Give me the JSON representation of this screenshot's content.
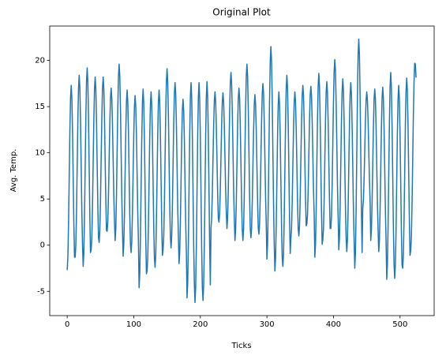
{
  "chart_data": {
    "type": "line",
    "title": "Original Plot",
    "x_label": "Ticks",
    "y_label": "Avg. Temp.",
    "xlim": [
      -26.25,
      551.25
    ],
    "xticks": [
      0,
      100,
      200,
      300,
      400,
      500
    ],
    "ylim": [
      -7.625,
      23.725
    ],
    "yticks": [
      -5,
      0,
      5,
      10,
      15,
      20
    ],
    "x": [
      0,
      1,
      2,
      3,
      4,
      5,
      6,
      7,
      8,
      9,
      10,
      11,
      12,
      13,
      14,
      15,
      16,
      17,
      18,
      19,
      20,
      21,
      22,
      23,
      24,
      25,
      26,
      27,
      28,
      29,
      30,
      31,
      32,
      33,
      34,
      35,
      36,
      37,
      38,
      39,
      40,
      41,
      42,
      43,
      44,
      45,
      46,
      47,
      48,
      49,
      50,
      51,
      52,
      53,
      54,
      55,
      56,
      57,
      58,
      59,
      60,
      61,
      62,
      63,
      64,
      65,
      66,
      67,
      68,
      69,
      70,
      71,
      72,
      73,
      74,
      75,
      76,
      77,
      78,
      79,
      80,
      81,
      82,
      83,
      84,
      85,
      86,
      87,
      88,
      89,
      90,
      91,
      92,
      93,
      94,
      95,
      96,
      97,
      98,
      99,
      100,
      101,
      102,
      103,
      104,
      105,
      106,
      107,
      108,
      109,
      110,
      111,
      112,
      113,
      114,
      115,
      116,
      117,
      118,
      119,
      120,
      121,
      122,
      123,
      124,
      125,
      126,
      127,
      128,
      129,
      130,
      131,
      132,
      133,
      134,
      135,
      136,
      137,
      138,
      139,
      140,
      141,
      142,
      143,
      144,
      145,
      146,
      147,
      148,
      149,
      150,
      151,
      152,
      153,
      154,
      155,
      156,
      157,
      158,
      159,
      160,
      161,
      162,
      163,
      164,
      165,
      166,
      167,
      168,
      169,
      170,
      171,
      172,
      173,
      174,
      175,
      176,
      177,
      178,
      179,
      180,
      181,
      182,
      183,
      184,
      185,
      186,
      187,
      188,
      189,
      190,
      191,
      192,
      193,
      194,
      195,
      196,
      197,
      198,
      199,
      200,
      201,
      202,
      203,
      204,
      205,
      206,
      207,
      208,
      209,
      210,
      211,
      212,
      213,
      214,
      215,
      216,
      217,
      218,
      219,
      220,
      221,
      222,
      223,
      224,
      225,
      226,
      227,
      228,
      229,
      230,
      231,
      232,
      233,
      234,
      235,
      236,
      237,
      238,
      239,
      240,
      241,
      242,
      243,
      244,
      245,
      246,
      247,
      248,
      249,
      250,
      251,
      252,
      253,
      254,
      255,
      256,
      257,
      258,
      259,
      260,
      261,
      262,
      263,
      264,
      265,
      266,
      267,
      268,
      269,
      270,
      271,
      272,
      273,
      274,
      275,
      276,
      277,
      278,
      279,
      280,
      281,
      282,
      283,
      284,
      285,
      286,
      287,
      288,
      289,
      290,
      291,
      292,
      293,
      294,
      295,
      296,
      297,
      298,
      299,
      300,
      301,
      302,
      303,
      304,
      305,
      306,
      307,
      308,
      309,
      310,
      311,
      312,
      313,
      314,
      315,
      316,
      317,
      318,
      319,
      320,
      321,
      322,
      323,
      324,
      325,
      326,
      327,
      328,
      329,
      330,
      331,
      332,
      333,
      334,
      335,
      336,
      337,
      338,
      339,
      340,
      341,
      342,
      343,
      344,
      345,
      346,
      347,
      348,
      349,
      350,
      351,
      352,
      353,
      354,
      355,
      356,
      357,
      358,
      359,
      360,
      361,
      362,
      363,
      364,
      365,
      366,
      367,
      368,
      369,
      370,
      371,
      372,
      373,
      374,
      375,
      376,
      377,
      378,
      379,
      380,
      381,
      382,
      383,
      384,
      385,
      386,
      387,
      388,
      389,
      390,
      391,
      392,
      393,
      394,
      395,
      396,
      397,
      398,
      399,
      400,
      401,
      402,
      403,
      404,
      405,
      406,
      407,
      408,
      409,
      410,
      411,
      412,
      413,
      414,
      415,
      416,
      417,
      418,
      419,
      420,
      421,
      422,
      423,
      424,
      425,
      426,
      427,
      428,
      429,
      430,
      431,
      432,
      433,
      434,
      435,
      436,
      437,
      438,
      439,
      440,
      441,
      442,
      443,
      444,
      445,
      446,
      447,
      448,
      449,
      450,
      451,
      452,
      453,
      454,
      455,
      456,
      457,
      458,
      459,
      460,
      461,
      462,
      463,
      464,
      465,
      466,
      467,
      468,
      469,
      470,
      471,
      472,
      473,
      474,
      475,
      476,
      477,
      478,
      479,
      480,
      481,
      482,
      483,
      484,
      485,
      486,
      487,
      488,
      489,
      490,
      491,
      492,
      493,
      494,
      495,
      496,
      497,
      498,
      499,
      500,
      501,
      502,
      503,
      504,
      505,
      506,
      507,
      508,
      509,
      510,
      511,
      512,
      513,
      514,
      515,
      516,
      517,
      518,
      519,
      520,
      521,
      522,
      523,
      524,
      525
    ],
    "series": [
      {
        "name": "Avg. Temp.",
        "color": "#1f77b4",
        "values": [
          -2.7,
          -1.3,
          2.3,
          7.3,
          12.3,
          15.9,
          17.3,
          15.9,
          12.3,
          7.3,
          2.3,
          -1.3,
          -1.3,
          0.1,
          3.6,
          8.6,
          13.5,
          17.0,
          18.4,
          17.0,
          13.5,
          8.6,
          3.6,
          0.1,
          -2.3,
          -0.8,
          3.1,
          8.5,
          13.8,
          17.7,
          19.2,
          17.7,
          13.8,
          8.5,
          3.1,
          -0.8,
          -0.5,
          0.8,
          4.2,
          8.9,
          13.5,
          16.9,
          18.2,
          16.9,
          13.5,
          8.9,
          4.2,
          0.8,
          0.3,
          1.6,
          4.8,
          9.3,
          13.7,
          17.0,
          18.2,
          17.0,
          13.7,
          9.3,
          4.8,
          1.6,
          1.5,
          2.6,
          5.4,
          9.3,
          13.1,
          15.9,
          17.0,
          15.9,
          13.1,
          9.3,
          5.4,
          2.6,
          0.5,
          1.8,
          5.3,
          10.1,
          14.8,
          18.3,
          19.6,
          18.3,
          14.8,
          10.1,
          5.3,
          1.8,
          -1.2,
          0.1,
          3.3,
          7.8,
          12.3,
          15.5,
          16.8,
          15.5,
          12.3,
          7.8,
          3.3,
          0.1,
          -0.8,
          0.4,
          3.5,
          7.7,
          12.0,
          15.0,
          16.2,
          15.0,
          12.0,
          7.7,
          3.5,
          0.4,
          -4.6,
          -3.1,
          0.8,
          6.2,
          11.5,
          15.4,
          16.9,
          15.4,
          11.5,
          6.2,
          0.8,
          -3.1,
          -2.8,
          -1.4,
          2.1,
          6.9,
          11.8,
          15.2,
          16.6,
          15.2,
          11.8,
          6.9,
          2.1,
          -1.4,
          -2.4,
          -1.1,
          2.4,
          7.2,
          12.0,
          15.5,
          16.8,
          15.5,
          12.0,
          7.2,
          2.4,
          -1.1,
          -0.5,
          0.9,
          4.4,
          9.3,
          14.2,
          17.7,
          19.1,
          17.7,
          14.2,
          9.3,
          4.4,
          0.9,
          -0.3,
          1.0,
          4.2,
          8.7,
          13.1,
          16.4,
          17.6,
          16.4,
          13.1,
          8.7,
          4.2,
          1.0,
          -2.0,
          -0.8,
          2.5,
          6.9,
          11.4,
          14.6,
          15.8,
          14.6,
          11.4,
          6.9,
          2.5,
          -0.8,
          -5.7,
          -4.1,
          0.1,
          6.0,
          11.8,
          16.0,
          17.6,
          16.0,
          11.8,
          6.0,
          0.1,
          -4.1,
          -6.2,
          -4.5,
          -0.3,
          5.7,
          11.7,
          15.9,
          17.6,
          15.9,
          11.7,
          5.7,
          -0.3,
          -4.5,
          -6.0,
          -4.3,
          -0.1,
          5.9,
          11.8,
          16.0,
          17.7,
          16.0,
          11.8,
          5.9,
          -0.1,
          -4.3,
          1.9,
          2.9,
          5.6,
          9.3,
          12.9,
          15.6,
          16.6,
          15.6,
          12.9,
          9.3,
          5.6,
          2.9,
          2.5,
          3.5,
          6.0,
          9.5,
          13.0,
          15.5,
          16.5,
          15.5,
          13.0,
          9.5,
          6.0,
          3.5,
          1.8,
          3.0,
          6.0,
          10.3,
          14.5,
          17.5,
          18.7,
          17.5,
          14.5,
          10.3,
          6.0,
          3.0,
          0.5,
          1.7,
          4.6,
          8.8,
          12.9,
          15.9,
          17.0,
          15.9,
          12.9,
          8.8,
          4.6,
          1.7,
          0.5,
          1.8,
          5.3,
          10.1,
          14.8,
          18.3,
          19.6,
          18.3,
          14.8,
          10.1,
          5.3,
          1.8,
          0.8,
          1.9,
          4.7,
          8.6,
          12.4,
          15.2,
          16.3,
          15.2,
          12.4,
          8.6,
          4.7,
          1.9,
          1.2,
          2.3,
          5.3,
          9.4,
          13.4,
          16.4,
          17.5,
          16.4,
          13.4,
          9.4,
          5.3,
          2.3,
          -1.5,
          0.1,
          4.3,
          10.0,
          15.8,
          19.9,
          21.5,
          19.9,
          15.8,
          10.0,
          4.3,
          0.1,
          -2.8,
          -1.4,
          2.1,
          6.9,
          11.8,
          15.2,
          16.6,
          15.2,
          11.8,
          6.9,
          2.1,
          -1.4,
          -2.3,
          -0.9,
          2.9,
          8.1,
          13.2,
          17.0,
          18.4,
          17.0,
          13.2,
          8.1,
          2.9,
          -0.9,
          0.7,
          1.8,
          4.7,
          8.7,
          12.6,
          15.5,
          16.6,
          15.5,
          12.6,
          8.7,
          4.7,
          1.8,
          1.0,
          2.1,
          5.1,
          9.2,
          13.2,
          16.2,
          17.3,
          16.2,
          13.2,
          9.2,
          5.1,
          2.1,
          2.3,
          3.3,
          6.0,
          9.8,
          13.5,
          16.2,
          17.2,
          16.2,
          13.5,
          9.8,
          6.0,
          3.3,
          -1.3,
          0.1,
          3.7,
          8.7,
          13.6,
          17.2,
          18.6,
          17.2,
          13.6,
          8.7,
          3.7,
          0.1,
          0.6,
          1.8,
          4.9,
          9.2,
          13.4,
          16.5,
          17.7,
          16.5,
          13.4,
          9.2,
          4.9,
          1.8,
          1.8,
          3.1,
          6.4,
          11.0,
          15.5,
          18.8,
          20.1,
          18.8,
          15.5,
          11.0,
          6.4,
          3.1,
          -0.5,
          0.8,
          4.1,
          8.8,
          13.4,
          16.7,
          18.0,
          16.7,
          13.4,
          8.8,
          4.1,
          0.8,
          -0.7,
          0.6,
          3.9,
          8.5,
          13.0,
          16.3,
          17.6,
          16.3,
          13.0,
          8.5,
          3.9,
          0.6,
          -2.5,
          -0.8,
          3.7,
          9.9,
          16.1,
          20.6,
          22.3,
          20.6,
          16.1,
          9.9,
          3.7,
          -0.8,
          4.0,
          4.9,
          7.2,
          10.3,
          13.5,
          15.7,
          16.6,
          15.7,
          13.5,
          10.3,
          7.2,
          4.9,
          0.5,
          1.7,
          4.6,
          8.7,
          12.8,
          15.8,
          16.9,
          15.8,
          12.8,
          8.7,
          4.6,
          1.7,
          -0.7,
          0.5,
          3.8,
          8.2,
          12.7,
          15.9,
          17.1,
          15.9,
          12.7,
          8.2,
          3.8,
          0.5,
          -3.7,
          -2.1,
          1.9,
          7.5,
          13.1,
          17.1,
          18.7,
          17.1,
          13.1,
          7.5,
          1.9,
          -2.1,
          -3.6,
          -2.1,
          1.6,
          6.9,
          12.1,
          15.8,
          17.3,
          15.8,
          12.1,
          6.9,
          1.6,
          -2.1,
          -2.5,
          -1.1,
          2.7,
          7.8,
          13.0,
          16.7,
          18.1,
          16.7,
          13.0,
          7.8,
          2.7,
          -1.1,
          -0.6,
          0.8,
          4.3,
          9.1,
          14.0,
          17.6,
          19.7,
          19.6,
          18.2,
          18.2
        ]
      }
    ]
  }
}
